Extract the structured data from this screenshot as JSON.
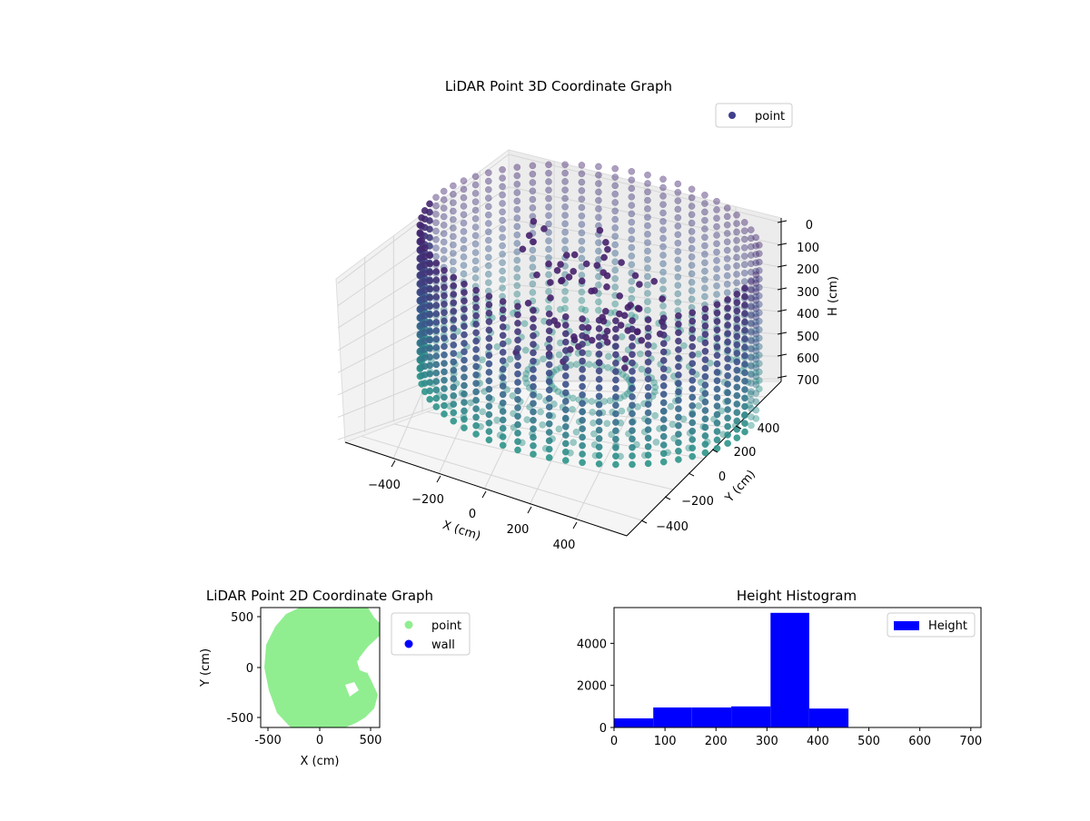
{
  "colors": {
    "point_3d": "#3f3f8c",
    "point_2d": "#90ee90",
    "wall_2d": "#0000ff",
    "hist_bar": "#0000ff",
    "viridis_dark": "#46206b",
    "viridis_teal": "#2a9a8a"
  },
  "chart_data": [
    {
      "type": "scatter",
      "title": "LiDAR Point 3D Coordinate Graph",
      "xlabel": "X (cm)",
      "ylabel": "Y (cm)",
      "zlabel": "H (cm)",
      "x_ticks": [
        "−400",
        "−200",
        "0",
        "200",
        "400"
      ],
      "y_ticks": [
        "−400",
        "−200",
        "0",
        "200",
        "400"
      ],
      "z_ticks": [
        "0",
        "100",
        "200",
        "300",
        "400",
        "500",
        "600",
        "700"
      ],
      "xlim": [
        -550,
        550
      ],
      "ylim": [
        -550,
        550
      ],
      "zlim": [
        0,
        720
      ],
      "z_inverted": true,
      "grid": true,
      "legend": {
        "position": "top-right",
        "entries": [
          {
            "name": "point"
          }
        ]
      },
      "wall_radius": 500,
      "wall_height_range": [
        50,
        700
      ]
    },
    {
      "type": "scatter",
      "title": "LiDAR Point 2D Coordinate Graph",
      "xlabel": "X (cm)",
      "ylabel": "Y (cm)",
      "x_ticks": [
        -500,
        0,
        500
      ],
      "y_ticks": [
        -500,
        0,
        500
      ],
      "xlim": [
        -580,
        580
      ],
      "ylim": [
        -580,
        580
      ],
      "legend": {
        "position": "outside-right",
        "entries": [
          {
            "name": "point"
          },
          {
            "name": "wall"
          }
        ]
      },
      "series": [
        {
          "name": "point",
          "shape": "filled region, radius ~500 cm, irregular right edge"
        },
        {
          "name": "wall"
        }
      ]
    },
    {
      "type": "bar",
      "title": "Height Histogram",
      "xlabel": "",
      "ylabel": "",
      "x_ticks": [
        0,
        100,
        200,
        300,
        400,
        500,
        600,
        700
      ],
      "y_ticks": [
        0,
        2000,
        4000
      ],
      "xlim": [
        0,
        720
      ],
      "ylim": [
        0,
        5700
      ],
      "bin_edges": [
        0,
        77,
        153,
        230,
        307,
        383,
        460,
        537,
        613,
        690
      ],
      "values": [
        430,
        950,
        950,
        1000,
        5450,
        900,
        0,
        0,
        0
      ],
      "legend": {
        "position": "top-right",
        "entries": [
          {
            "name": "Height"
          }
        ]
      }
    }
  ]
}
